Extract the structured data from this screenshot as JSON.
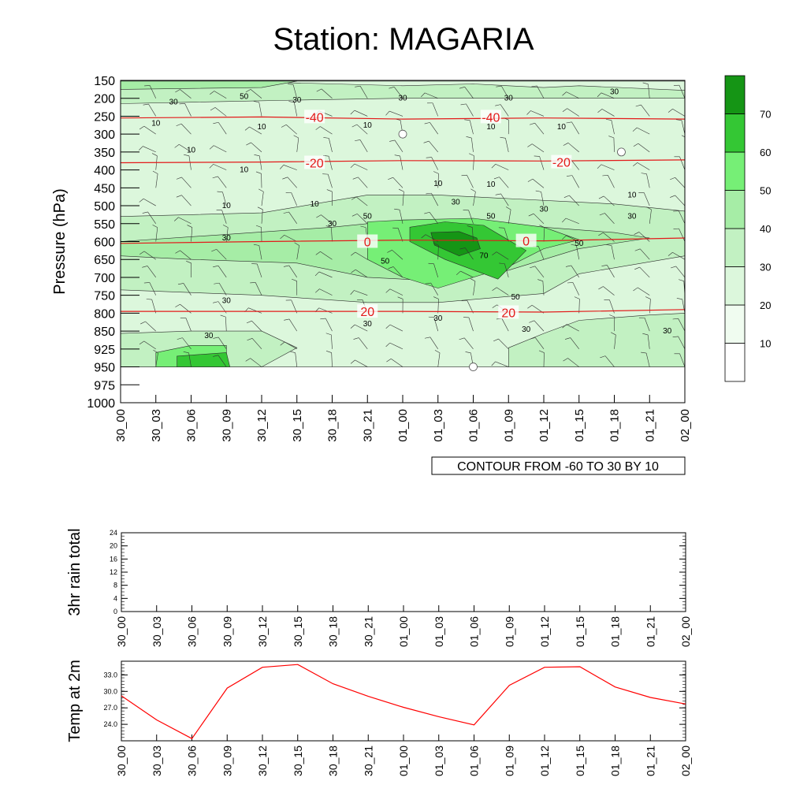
{
  "page": {
    "title": "Station: MAGARIA"
  },
  "colors": {
    "fill_levels": [
      "#ffffff",
      "#f0fcf0",
      "#dcf7dc",
      "#c2f1c2",
      "#a6eda6",
      "#76ef76",
      "#34c734",
      "#159515"
    ],
    "temp_contour": "#e31a1a",
    "humidity_contour": "#2b2b2b",
    "temp_line": "#ff0000"
  },
  "chart_data": [
    {
      "type": "heatmap",
      "name": "time-height-cross-section",
      "ylabel": "Pressure (hPa)",
      "y_ticks": [
        150,
        200,
        250,
        300,
        350,
        400,
        450,
        500,
        550,
        600,
        650,
        700,
        750,
        800,
        850,
        925,
        950,
        975,
        1000
      ],
      "x_ticks": [
        "30_00",
        "30_03",
        "30_06",
        "30_09",
        "30_12",
        "30_15",
        "30_18",
        "30_21",
        "01_00",
        "01_03",
        "01_06",
        "01_09",
        "01_12",
        "01_15",
        "01_18",
        "01_21",
        "02_00"
      ],
      "info_label": "CONTOUR FROM -60 TO 30 BY 10",
      "colorbar": {
        "levels": [
          10,
          20,
          30,
          40,
          50,
          60,
          70
        ],
        "labels": [
          "10",
          "20",
          "30",
          "40",
          "50",
          "60",
          "70"
        ]
      },
      "humidity_regions": [
        {
          "level": 20,
          "points": [
            [
              0,
              152
            ],
            [
              16,
              152
            ],
            [
              16,
              950
            ],
            [
              0,
              950
            ]
          ]
        },
        {
          "level": 30,
          "points": [
            [
              0,
              152
            ],
            [
              3,
              152
            ],
            [
              8,
              165
            ],
            [
              10,
              160
            ],
            [
              12,
              170
            ],
            [
              13,
              165
            ],
            [
              16,
              178
            ],
            [
              16,
              200
            ],
            [
              12,
              200
            ],
            [
              8,
              200
            ],
            [
              5,
              205
            ],
            [
              0,
              215
            ]
          ]
        },
        {
          "level": 30,
          "points": [
            [
              0,
              530
            ],
            [
              4,
              520
            ],
            [
              7,
              470
            ],
            [
              9,
              470
            ],
            [
              11,
              480
            ],
            [
              14,
              495
            ],
            [
              16,
              515
            ],
            [
              16,
              640
            ],
            [
              13,
              690
            ],
            [
              12,
              745
            ],
            [
              9,
              770
            ],
            [
              7,
              770
            ],
            [
              4,
              750
            ],
            [
              0,
              735
            ]
          ]
        },
        {
          "level": 30,
          "points": [
            [
              0,
              860
            ],
            [
              2,
              850
            ],
            [
              4,
              850
            ],
            [
              5,
              920
            ],
            [
              4,
              950
            ],
            [
              0,
              950
            ]
          ]
        },
        {
          "level": 30,
          "points": [
            [
              11,
              920
            ],
            [
              12,
              860
            ],
            [
              13,
              820
            ],
            [
              15,
              805
            ],
            [
              16,
              800
            ],
            [
              16,
              950
            ],
            [
              11,
              950
            ]
          ]
        },
        {
          "level": 40,
          "points": [
            [
              0,
              152
            ],
            [
              5,
              152
            ],
            [
              4,
              170
            ],
            [
              0,
              175
            ]
          ]
        },
        {
          "level": 40,
          "points": [
            [
              0,
              600
            ],
            [
              3,
              580
            ],
            [
              6,
              560
            ],
            [
              8,
              540
            ],
            [
              10,
              540
            ],
            [
              12,
              560
            ],
            [
              14,
              575
            ],
            [
              15,
              590
            ],
            [
              13,
              620
            ],
            [
              11,
              680
            ],
            [
              9,
              710
            ],
            [
              7,
              700
            ],
            [
              5,
              660
            ],
            [
              2,
              650
            ],
            [
              0,
              640
            ]
          ]
        },
        {
          "level": 50,
          "points": [
            [
              7,
              545
            ],
            [
              8,
              540
            ],
            [
              10,
              535
            ],
            [
              12,
              560
            ],
            [
              13,
              595
            ],
            [
              12,
              620
            ],
            [
              11,
              670
            ],
            [
              10,
              700
            ],
            [
              9,
              730
            ],
            [
              8,
              700
            ],
            [
              7,
              650
            ],
            [
              7,
              600
            ]
          ]
        },
        {
          "level": 50,
          "points": [
            [
              1,
              930
            ],
            [
              2,
              910
            ],
            [
              3,
              910
            ],
            [
              3,
              940
            ],
            [
              3,
              950
            ],
            [
              1,
              950
            ]
          ]
        },
        {
          "level": 60,
          "points": [
            [
              8.2,
              560
            ],
            [
              9.2,
              545
            ],
            [
              10.3,
              555
            ],
            [
              11.5,
              625
            ],
            [
              10.7,
              705
            ],
            [
              9.2,
              650
            ],
            [
              8.2,
              600
            ]
          ]
        },
        {
          "level": 70,
          "points": [
            [
              8.8,
              575
            ],
            [
              9.6,
              572
            ],
            [
              10.1,
              590
            ],
            [
              10.2,
              620
            ],
            [
              9.6,
              640
            ],
            [
              8.9,
              610
            ]
          ]
        },
        {
          "level": 60,
          "points": [
            [
              1.6,
              935
            ],
            [
              3,
              930
            ],
            [
              3.1,
              950
            ],
            [
              1.6,
              950
            ]
          ]
        }
      ],
      "temp_contours": [
        {
          "label": "-40",
          "points": [
            [
              0,
              255
            ],
            [
              4,
              252
            ],
            [
              8,
              258
            ],
            [
              12,
              255
            ],
            [
              16,
              258
            ]
          ],
          "label_at": [
            [
              5.5,
              252
            ],
            [
              10.5,
              252
            ]
          ]
        },
        {
          "label": "-20",
          "points": [
            [
              0,
              380
            ],
            [
              4,
              378
            ],
            [
              8,
              374
            ],
            [
              12,
              375
            ],
            [
              16,
              372
            ]
          ],
          "label_at": [
            [
              5.5,
              380
            ],
            [
              12.5,
              378
            ]
          ]
        },
        {
          "label": "0",
          "points": [
            [
              0,
              605
            ],
            [
              4,
              600
            ],
            [
              8,
              596
            ],
            [
              12,
              598
            ],
            [
              16,
              590
            ]
          ],
          "label_at": [
            [
              7,
              600
            ],
            [
              11.5,
              598
            ]
          ]
        },
        {
          "label": "20",
          "points": [
            [
              0,
              795
            ],
            [
              4,
              795
            ],
            [
              8,
              795
            ],
            [
              12,
              797
            ],
            [
              16,
              790
            ]
          ],
          "label_at": [
            [
              7,
              795
            ],
            [
              11,
              798
            ]
          ]
        }
      ],
      "humidity_line_labels": [
        {
          "text": "30",
          "at": [
            1.5,
            210
          ]
        },
        {
          "text": "50",
          "at": [
            3.5,
            195
          ]
        },
        {
          "text": "30",
          "at": [
            5,
            205
          ]
        },
        {
          "text": "30",
          "at": [
            8,
            200
          ]
        },
        {
          "text": "30",
          "at": [
            11,
            200
          ]
        },
        {
          "text": "30",
          "at": [
            14,
            182
          ]
        },
        {
          "text": "10",
          "at": [
            1,
            270
          ]
        },
        {
          "text": "10",
          "at": [
            4,
            280
          ]
        },
        {
          "text": "10",
          "at": [
            7,
            275
          ]
        },
        {
          "text": "10",
          "at": [
            10.5,
            280
          ]
        },
        {
          "text": "10",
          "at": [
            12.5,
            280
          ]
        },
        {
          "text": "10",
          "at": [
            2,
            345
          ]
        },
        {
          "text": "10",
          "at": [
            3.5,
            400
          ]
        },
        {
          "text": "10",
          "at": [
            9,
            438
          ]
        },
        {
          "text": "10",
          "at": [
            10.5,
            440
          ]
        },
        {
          "text": "10",
          "at": [
            3,
            500
          ]
        },
        {
          "text": "10",
          "at": [
            5.5,
            495
          ]
        },
        {
          "text": "30",
          "at": [
            9.5,
            490
          ]
        },
        {
          "text": "30",
          "at": [
            12,
            510
          ]
        },
        {
          "text": "10",
          "at": [
            14.5,
            470
          ]
        },
        {
          "text": "30",
          "at": [
            14.5,
            530
          ]
        },
        {
          "text": "30",
          "at": [
            3,
            590
          ]
        },
        {
          "text": "50",
          "at": [
            7,
            530
          ]
        },
        {
          "text": "30",
          "at": [
            6,
            550
          ]
        },
        {
          "text": "50",
          "at": [
            10.5,
            530
          ]
        },
        {
          "text": "50",
          "at": [
            13,
            605
          ]
        },
        {
          "text": "70",
          "at": [
            10.3,
            640
          ]
        },
        {
          "text": "50",
          "at": [
            7.5,
            655
          ]
        },
        {
          "text": "30",
          "at": [
            3,
            765
          ]
        },
        {
          "text": "50",
          "at": [
            11.2,
            755
          ]
        },
        {
          "text": "30",
          "at": [
            7,
            830
          ]
        },
        {
          "text": "30",
          "at": [
            9,
            815
          ]
        },
        {
          "text": "30",
          "at": [
            11.5,
            845
          ]
        },
        {
          "text": "30",
          "at": [
            15.5,
            850
          ]
        },
        {
          "text": "30",
          "at": [
            2.5,
            870
          ]
        }
      ],
      "markers": [
        [
          8,
          300
        ],
        [
          14.2,
          350
        ],
        [
          10,
          950
        ]
      ]
    },
    {
      "type": "line",
      "name": "3hr-rain",
      "ylabel": "3hr rain total",
      "ylim": [
        0,
        24
      ],
      "y_ticks": [
        0,
        4,
        8,
        12,
        16,
        20,
        24
      ],
      "x_ticks": [
        "30_00",
        "30_03",
        "30_06",
        "30_09",
        "30_12",
        "30_15",
        "30_18",
        "30_21",
        "01_00",
        "01_03",
        "01_06",
        "01_09",
        "01_12",
        "01_15",
        "01_18",
        "01_21",
        "02_00"
      ],
      "values": []
    },
    {
      "type": "line",
      "name": "temp-2m",
      "ylabel": "Temp at 2m",
      "ylim": [
        21.0,
        35.5
      ],
      "y_ticks": [
        "24.0",
        "27.0",
        "30.0",
        "33.0"
      ],
      "x_ticks": [
        "30_00",
        "30_03",
        "30_06",
        "30_09",
        "30_12",
        "30_15",
        "30_18",
        "30_21",
        "01_00",
        "01_03",
        "01_06",
        "01_09",
        "01_12",
        "01_15",
        "01_18",
        "01_21",
        "02_00"
      ],
      "values": [
        29.2,
        24.8,
        21.4,
        30.6,
        34.4,
        34.9,
        31.4,
        29.1,
        27.1,
        25.4,
        23.9,
        31.1,
        34.4,
        34.5,
        30.8,
        28.9,
        27.7
      ]
    }
  ]
}
